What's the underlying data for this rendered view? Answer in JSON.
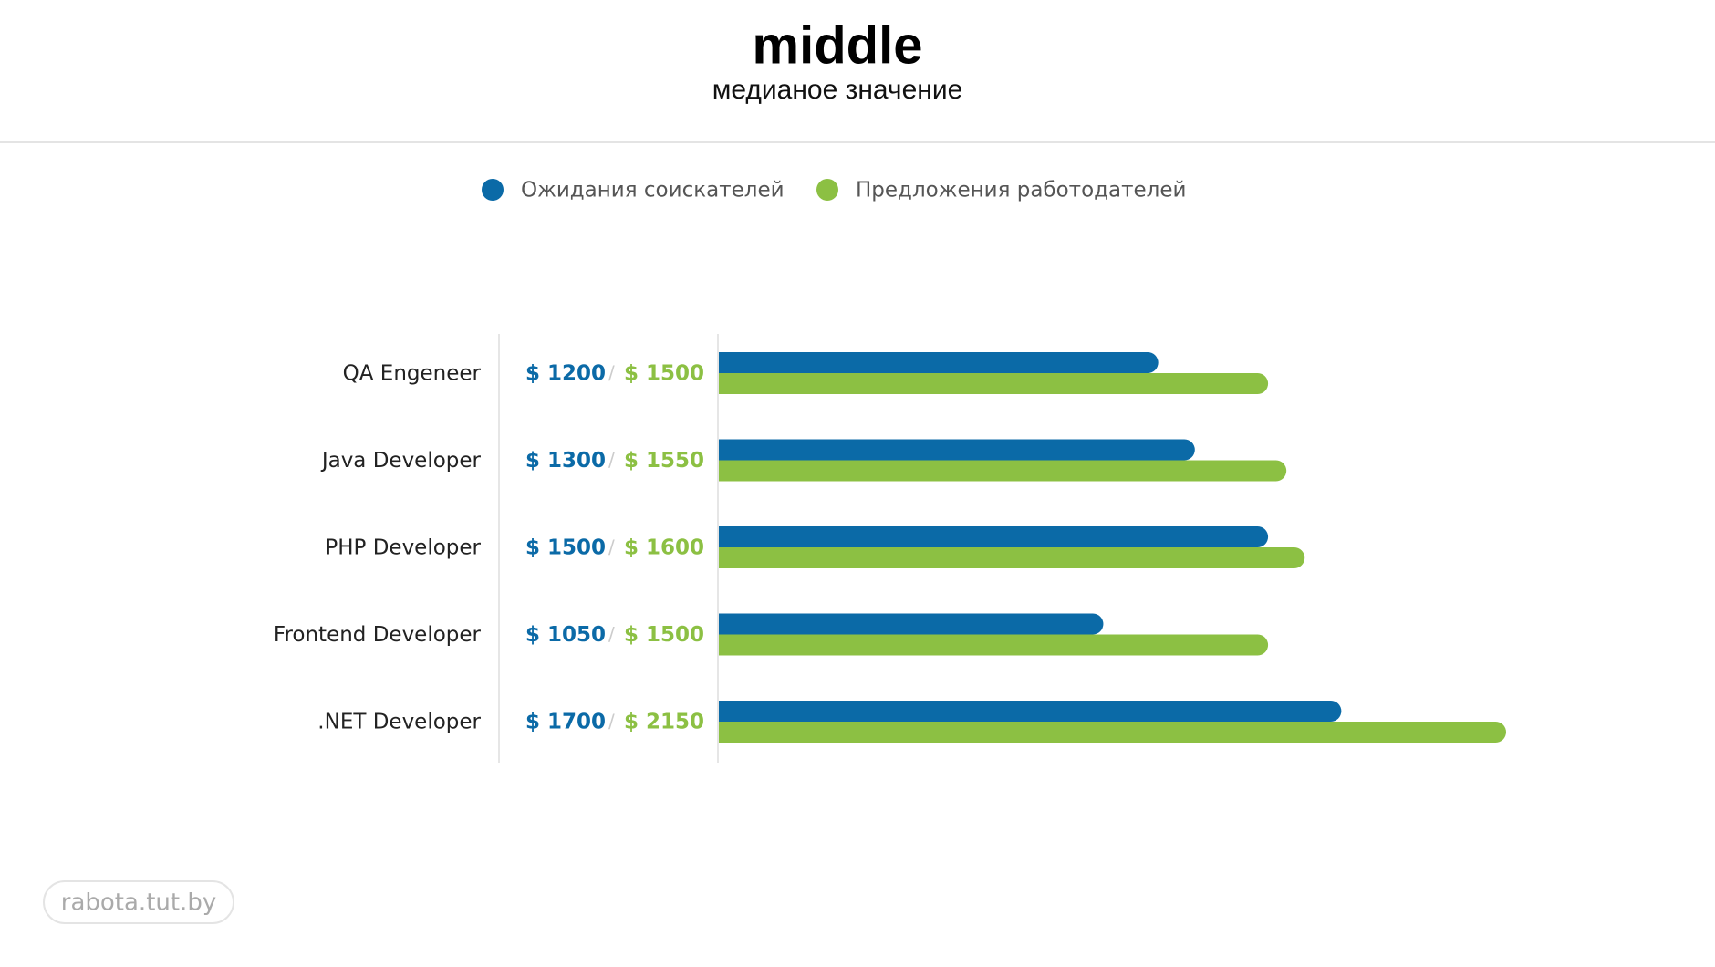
{
  "chart_data": {
    "type": "bar",
    "orientation": "horizontal",
    "title": "middle",
    "subtitle": "медианое значение",
    "categories": [
      "QA Engeneer",
      "Java Developer",
      "PHP Developer",
      "Frontend Developer",
      ".NET Developer"
    ],
    "series": [
      {
        "name": "Ожидания соискателей",
        "color": "#0b6aa7",
        "values": [
          1200,
          1300,
          1500,
          1050,
          1700
        ],
        "value_labels": [
          "$ 1200",
          "$ 1300",
          "$ 1500",
          "$ 1050",
          "$ 1700"
        ]
      },
      {
        "name": "Предложения работодателей",
        "color": "#8cc043",
        "values": [
          1500,
          1550,
          1600,
          1500,
          2150
        ],
        "value_labels": [
          "$ 1500",
          "$ 1550",
          "$ 1600",
          "$ 1500",
          "$ 2150"
        ]
      }
    ],
    "watermark": "rabota.tut.by"
  }
}
